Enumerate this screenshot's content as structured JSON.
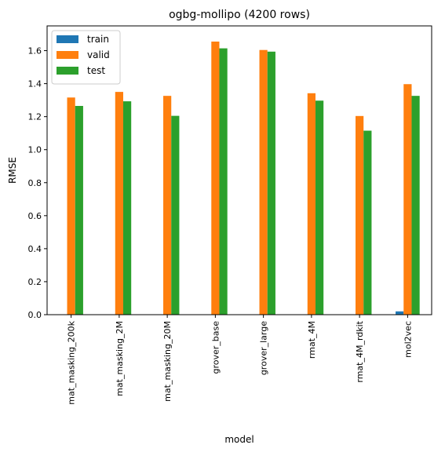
{
  "chart_data": {
    "type": "bar",
    "title": "ogbg-mollipo (4200 rows)",
    "xlabel": "model",
    "ylabel": "RMSE",
    "categories": [
      "mat_masking_200k",
      "mat_masking_2M",
      "mat_masking_20M",
      "grover_base",
      "grover_large",
      "rmat_4M",
      "rmat_4M_rdkit",
      "mol2vec"
    ],
    "series": [
      {
        "name": "train",
        "color": "#1f77b4",
        "values": [
          0,
          0,
          0,
          0,
          0,
          0,
          0,
          0.02
        ]
      },
      {
        "name": "valid",
        "color": "#ff7f0e",
        "values": [
          1.316,
          1.35,
          1.326,
          1.655,
          1.604,
          1.342,
          1.204,
          1.397
        ]
      },
      {
        "name": "test",
        "color": "#2ca02c",
        "values": [
          1.265,
          1.293,
          1.205,
          1.614,
          1.594,
          1.297,
          1.115,
          1.326
        ]
      }
    ],
    "ylim": [
      0,
      1.75
    ],
    "yticks": [
      "0.0",
      "0.2",
      "0.4",
      "0.6",
      "0.8",
      "1.0",
      "1.2",
      "1.4",
      "1.6"
    ],
    "legend": "top-left",
    "grid": false
  }
}
